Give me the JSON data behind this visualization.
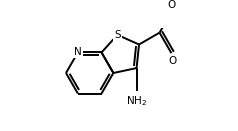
{
  "background_color": "#ffffff",
  "line_color": "#000000",
  "line_width": 1.4,
  "text_color": "#000000",
  "font_size": 7.5,
  "figure_width": 2.38,
  "figure_height": 1.31,
  "dpi": 100,
  "xlim": [
    -0.15,
    1.85
  ],
  "ylim": [
    -0.55,
    1.1
  ]
}
